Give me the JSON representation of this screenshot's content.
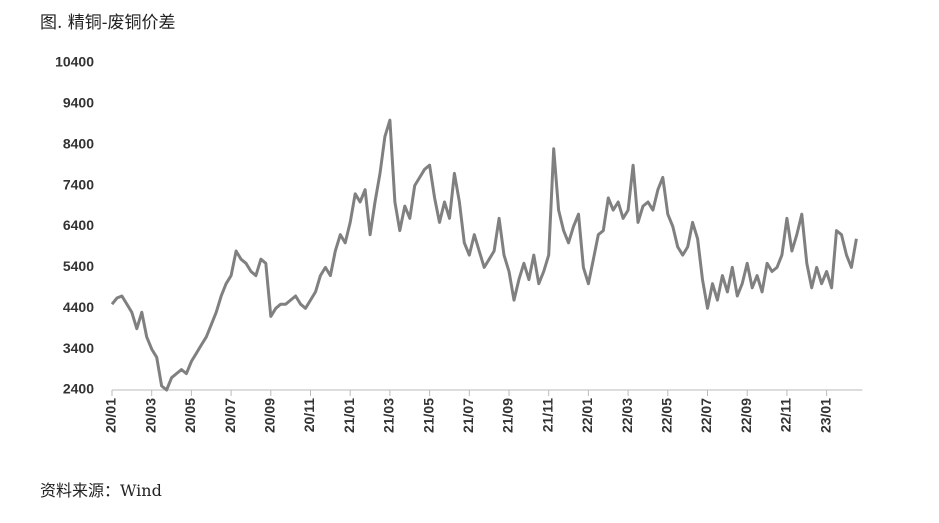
{
  "chart_data": {
    "type": "line",
    "title": "图. 精铜-废铜价差",
    "source": "资料来源：Wind",
    "categories": [
      "20/01",
      null,
      null,
      null,
      null,
      null,
      null,
      null,
      "20/03",
      null,
      null,
      null,
      null,
      null,
      null,
      null,
      "20/05",
      null,
      null,
      null,
      null,
      null,
      null,
      null,
      "20/07",
      null,
      null,
      null,
      null,
      null,
      null,
      null,
      "20/09",
      null,
      null,
      null,
      null,
      null,
      null,
      null,
      "20/11",
      null,
      null,
      null,
      null,
      null,
      null,
      null,
      "21/01",
      null,
      null,
      null,
      null,
      null,
      null,
      null,
      "21/03",
      null,
      null,
      null,
      null,
      null,
      null,
      null,
      "21/05",
      null,
      null,
      null,
      null,
      null,
      null,
      null,
      "21/07",
      null,
      null,
      null,
      null,
      null,
      null,
      null,
      "21/09",
      null,
      null,
      null,
      null,
      null,
      null,
      null,
      "21/11",
      null,
      null,
      null,
      null,
      null,
      null,
      null,
      "22/01",
      null,
      null,
      null,
      null,
      null,
      null,
      null,
      "22/03",
      null,
      null,
      null,
      null,
      null,
      null,
      null,
      "22/05",
      null,
      null,
      null,
      null,
      null,
      null,
      null,
      "22/07",
      null,
      null,
      null,
      null,
      null,
      null,
      null,
      "22/09",
      null,
      null,
      null,
      null,
      null,
      null,
      null,
      "22/11",
      null,
      null,
      null,
      null,
      null,
      null,
      null,
      "23/01",
      null,
      null,
      null,
      null,
      null,
      null
    ],
    "series": [
      {
        "color": "#808080",
        "values": [
          4500,
          4650,
          4700,
          4500,
          4300,
          3900,
          4300,
          3700,
          3400,
          3200,
          2500,
          2400,
          2700,
          2800,
          2900,
          2800,
          3100,
          3300,
          3500,
          3700,
          4000,
          4300,
          4700,
          5000,
          5200,
          5800,
          5600,
          5500,
          5300,
          5200,
          5600,
          5500,
          4200,
          4400,
          4500,
          4500,
          4600,
          4700,
          4500,
          4400,
          4600,
          4800,
          5200,
          5400,
          5200,
          5800,
          6200,
          6000,
          6500,
          7200,
          7000,
          7300,
          6200,
          7000,
          7700,
          8600,
          9000,
          7000,
          6300,
          6900,
          6600,
          7400,
          7600,
          7800,
          7900,
          7100,
          6500,
          7000,
          6600,
          7700,
          7000,
          6000,
          5700,
          6200,
          5800,
          5400,
          5600,
          5800,
          6600,
          5700,
          5300,
          4600,
          5100,
          5500,
          5100,
          5700,
          5000,
          5300,
          5700,
          8300,
          6800,
          6300,
          6000,
          6400,
          6700,
          5400,
          5000,
          5600,
          6200,
          6300,
          7100,
          6800,
          7000,
          6600,
          6800,
          7900,
          6500,
          6900,
          7000,
          6800,
          7300,
          7600,
          6700,
          6400,
          5900,
          5700,
          5900,
          6500,
          6100,
          5100,
          4400,
          5000,
          4600,
          5200,
          4800,
          5400,
          4700,
          5000,
          5500,
          4900,
          5200,
          4800,
          5500,
          5300,
          5400,
          5700,
          6600,
          5800,
          6200,
          6700,
          5500,
          4900,
          5400,
          5000,
          5300,
          4900,
          6300,
          6200,
          5700,
          5400,
          6100
        ]
      }
    ],
    "ylim": [
      2400,
      10400
    ],
    "yticks": [
      2400,
      3400,
      4400,
      5400,
      6400,
      7400,
      8400,
      9400,
      10400
    ]
  }
}
